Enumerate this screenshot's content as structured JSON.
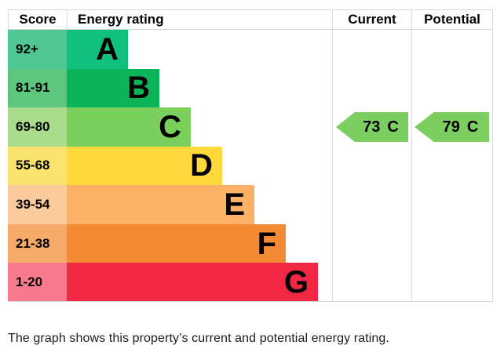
{
  "header": {
    "score": "Score",
    "energy_rating": "Energy rating",
    "current": "Current",
    "potential": "Potential"
  },
  "bands": [
    {
      "score": "92+",
      "letter": "A",
      "bar_color": "#11c07e",
      "score_bg": "#4ec795"
    },
    {
      "score": "81-91",
      "letter": "B",
      "bar_color": "#0bb458",
      "score_bg": "#5fc67e"
    },
    {
      "score": "69-80",
      "letter": "C",
      "bar_color": "#7ad05a",
      "score_bg": "#aadc8e"
    },
    {
      "score": "55-68",
      "letter": "D",
      "bar_color": "#ffd83c",
      "score_bg": "#f9e26e"
    },
    {
      "score": "39-54",
      "letter": "E",
      "bar_color": "#fcb167",
      "score_bg": "#fbcb9e"
    },
    {
      "score": "21-38",
      "letter": "F",
      "bar_color": "#f58a35",
      "score_bg": "#f5aa69"
    },
    {
      "score": "1-20",
      "letter": "G",
      "bar_color": "#f22743",
      "score_bg": "#f87b8d"
    }
  ],
  "ratings": {
    "current": {
      "score": "73",
      "band": "C",
      "color": "#7bce5f"
    },
    "potential": {
      "score": "79",
      "band": "C",
      "color": "#7bce5f"
    }
  },
  "caption": "The graph shows this property’s current and potential energy rating.",
  "colors": {
    "border": "#d8d8d8",
    "text": "#000000",
    "caption_text": "#1d1d1d"
  },
  "chart_data": {
    "type": "bar",
    "title": "Energy rating",
    "columns": [
      "Score",
      "Energy rating",
      "Current",
      "Potential"
    ],
    "categories": [
      "A",
      "B",
      "C",
      "D",
      "E",
      "F",
      "G"
    ],
    "score_ranges": [
      "92+",
      "81-91",
      "69-80",
      "55-68",
      "39-54",
      "21-38",
      "1-20"
    ],
    "bar_colors": [
      "#11c07e",
      "#0bb458",
      "#7ad05a",
      "#ffd83c",
      "#fcb167",
      "#f58a35",
      "#f22743"
    ],
    "current": {
      "value": 73,
      "band": "C"
    },
    "potential": {
      "value": 79,
      "band": "C"
    },
    "legend_position": "none",
    "grid": false
  }
}
